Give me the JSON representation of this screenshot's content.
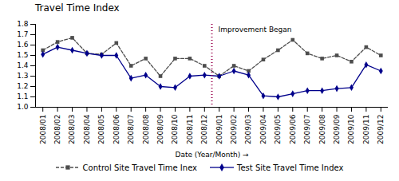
{
  "chart_data": {
    "type": "line",
    "title": "Travel Time Index",
    "x_label": "Date (Year/Month)",
    "categories": [
      "2008/01",
      "2008/02",
      "2008/03",
      "2008/04",
      "2008/05",
      "2008/06",
      "2008/07",
      "2008/08",
      "2008/09",
      "2008/10",
      "2008/11",
      "2008/12",
      "2009/01",
      "2009/02",
      "2009/03",
      "2009/04",
      "2009/05",
      "2009/06",
      "2009/07",
      "2009/08",
      "2009/09",
      "2009/10",
      "2009/11",
      "2009/12"
    ],
    "series": [
      {
        "name": "Control Site Travel Time Inex",
        "color": "#4d4d4d",
        "marker": "square",
        "line_style": "dashed",
        "values": [
          1.55,
          1.63,
          1.67,
          1.52,
          1.51,
          1.62,
          1.4,
          1.47,
          1.3,
          1.47,
          1.47,
          1.4,
          1.3,
          1.4,
          1.35,
          1.46,
          1.55,
          1.65,
          1.52,
          1.47,
          1.5,
          1.44,
          1.58,
          1.5
        ]
      },
      {
        "name": "Test Site Travel Time Index",
        "color": "#00008B",
        "marker": "diamond",
        "line_style": "solid",
        "values": [
          1.51,
          1.58,
          1.55,
          1.52,
          1.5,
          1.5,
          1.28,
          1.31,
          1.2,
          1.19,
          1.3,
          1.31,
          1.3,
          1.35,
          1.31,
          1.11,
          1.1,
          1.13,
          1.16,
          1.16,
          1.18,
          1.19,
          1.41,
          1.35
        ]
      }
    ],
    "annotations": [
      {
        "text": "Improvement Began",
        "between": [
          "2008/12",
          "2009/01"
        ],
        "color": "#99004C"
      }
    ],
    "ylim": [
      1.0,
      1.8
    ],
    "yticks": [
      {
        "value": 1.0,
        "label": "1.0"
      },
      1.1,
      1.2,
      1.3,
      1.4,
      1.5,
      1.6,
      1.7,
      1.8
    ],
    "grid": false,
    "legend": "bottom"
  }
}
